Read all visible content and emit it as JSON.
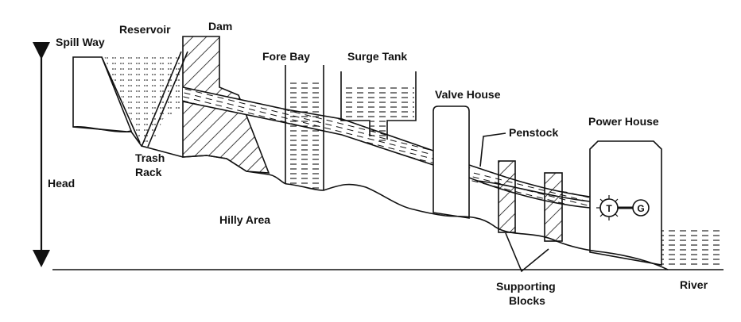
{
  "labels": {
    "spill_way": "Spill Way",
    "reservoir": "Reservoir",
    "dam": "Dam",
    "fore_bay": "Fore Bay",
    "surge_tank": "Surge Tank",
    "valve_house": "Valve House",
    "penstock": "Penstock",
    "power_house": "Power House",
    "trash_rack_1": "Trash",
    "trash_rack_2": "Rack",
    "head": "Head",
    "hilly_area": "Hilly Area",
    "supporting_blocks_1": "Supporting",
    "supporting_blocks_2": "Blocks",
    "river": "River",
    "turbine": "T",
    "generator": "G"
  },
  "colors": {
    "ink": "#111111",
    "background": "#ffffff"
  }
}
